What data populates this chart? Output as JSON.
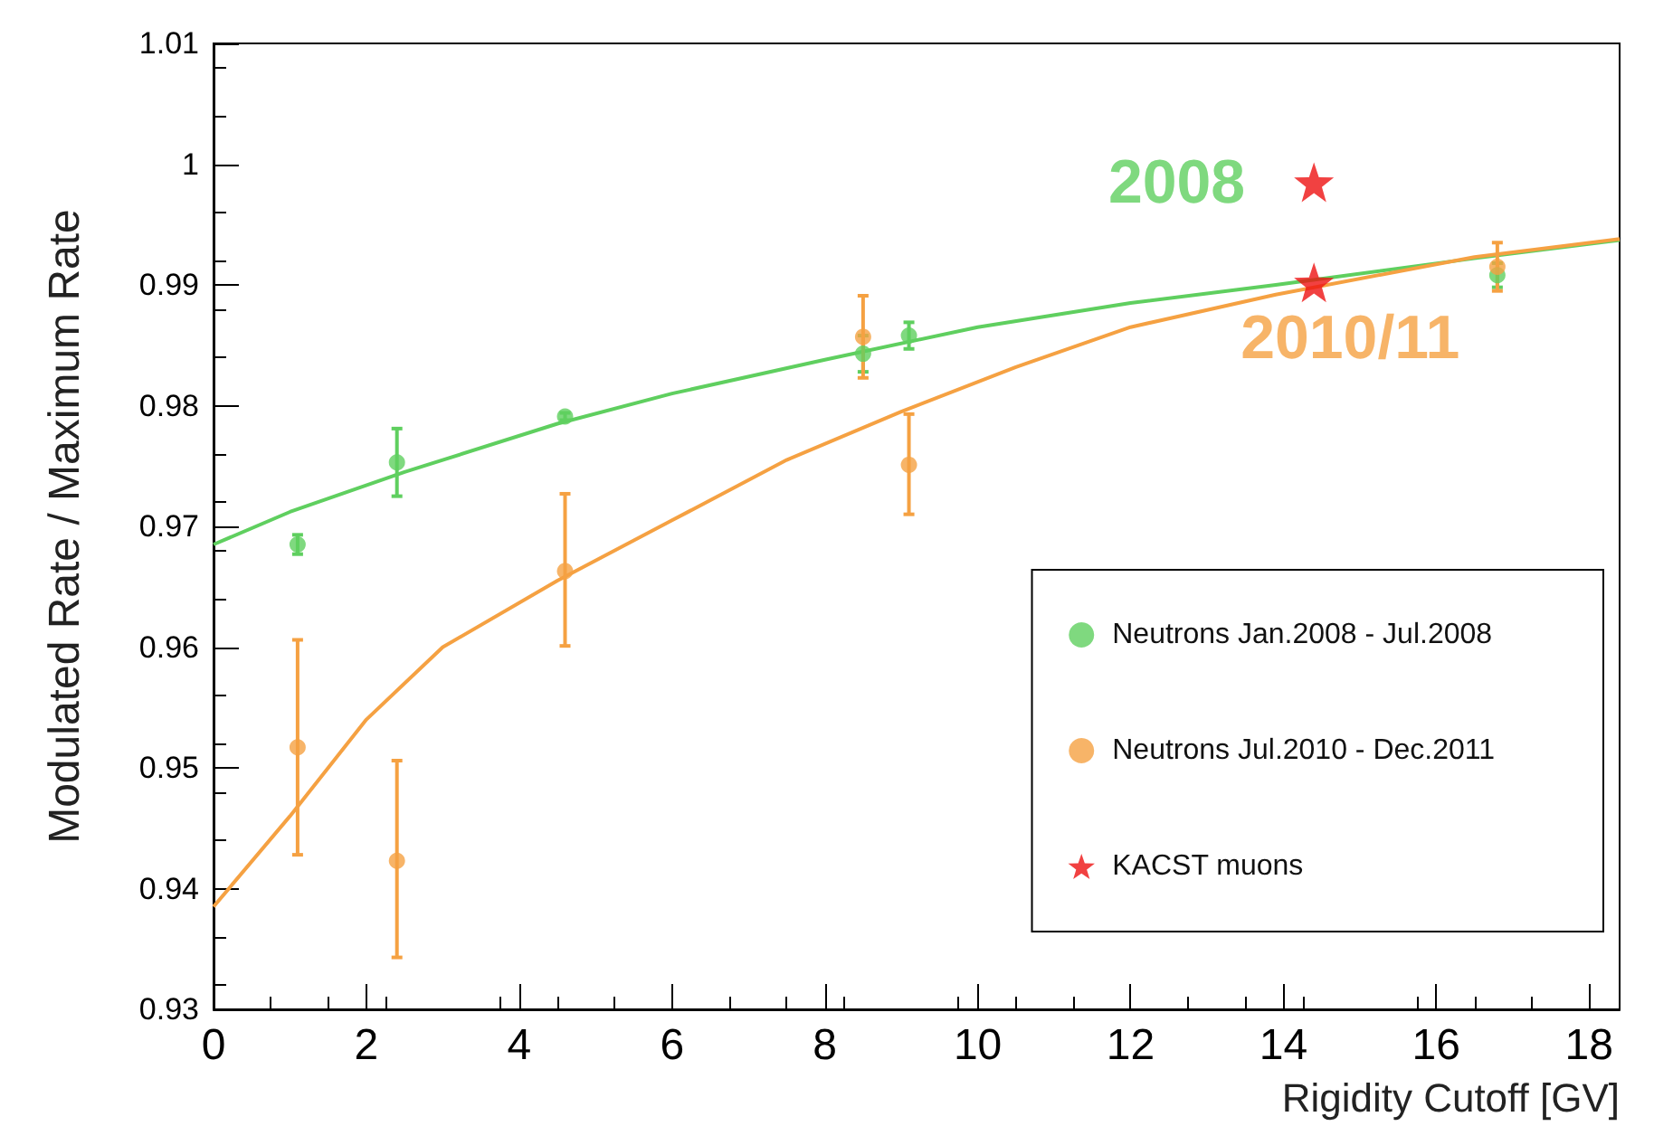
{
  "chart_data": {
    "type": "scatter",
    "xlabel": "Rigidity Cutoff [GV]",
    "ylabel": "Modulated Rate / Maximum Rate",
    "xlim": [
      0,
      18.4
    ],
    "xticks": [
      0,
      2,
      4,
      6,
      8,
      10,
      12,
      14,
      16,
      18
    ],
    "ylim": [
      0.93,
      1.01
    ],
    "yticks": [
      0.93,
      0.94,
      0.95,
      0.96,
      0.97,
      0.98,
      0.99,
      1,
      1.01
    ],
    "grid": false,
    "legend": "bottom right",
    "marker": "circle",
    "series": [
      {
        "name": "Neutrons Jan.2008 - Jul.2008",
        "color": "#5fcf5f",
        "x": [
          1.1,
          2.4,
          4.6,
          8.5,
          9.1,
          16.8
        ],
        "values": [
          0.9685,
          0.9753,
          0.9791,
          0.9843,
          0.9858,
          0.9908
        ],
        "errors": [
          0.0008,
          0.0028,
          0.0003,
          0.0015,
          0.0011,
          0.001
        ]
      },
      {
        "name": "Neutrons Jul.2010 - Dec.2011",
        "color": "#f5a142",
        "x": [
          1.1,
          2.4,
          4.6,
          8.5,
          9.1,
          16.8
        ],
        "values": [
          0.9517,
          0.9423,
          0.9663,
          0.9857,
          0.9751,
          0.9915
        ],
        "errors": [
          [
            0.9428,
            0.9606
          ],
          [
            0.9343,
            0.9506
          ],
          [
            0.9601,
            0.9727
          ],
          [
            0.9823,
            0.9891
          ],
          [
            0.971,
            0.9793
          ],
          [
            0.9895,
            0.9935
          ]
        ]
      },
      {
        "name": "KACST muons",
        "color": "#ee1111",
        "marker": "star",
        "x": [
          14.4,
          14.4
        ],
        "values": [
          0.9985,
          0.9902
        ]
      },
      {
        "type": "line",
        "color": "#5fcf5f",
        "marker": "none",
        "x": [
          0,
          1,
          2.5,
          4.5,
          6,
          8,
          10,
          12,
          13.9,
          16.5,
          18.4
        ],
        "values": [
          0.9685,
          0.9712,
          0.9745,
          0.9785,
          0.981,
          0.9838,
          0.9865,
          0.9885,
          0.99,
          0.9922,
          0.9937
        ]
      },
      {
        "type": "line",
        "color": "#f5a142",
        "marker": "none",
        "x": [
          0,
          1,
          2,
          3,
          4.5,
          6,
          7.5,
          9,
          10.5,
          12,
          13.9,
          16.5,
          18.4
        ],
        "values": [
          0.9385,
          0.946,
          0.954,
          0.96,
          0.9655,
          0.9705,
          0.9755,
          0.9795,
          0.9832,
          0.9865,
          0.9892,
          0.9923,
          0.9938
        ]
      }
    ],
    "annotations": [
      {
        "text": "2008",
        "x": 14.4,
        "y": 0.9985
      },
      {
        "text": "2010/11",
        "x": 14.4,
        "y": 0.9902
      }
    ]
  }
}
